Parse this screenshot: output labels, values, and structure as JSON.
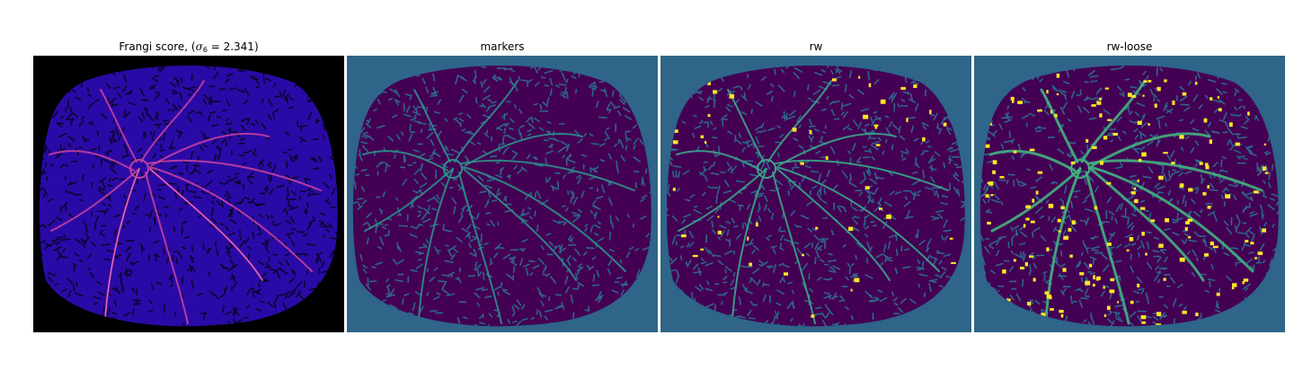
{
  "figure": {
    "panels": [
      {
        "id": "frangi",
        "title_prefix": "Frangi score, (",
        "title_symbol": "σ",
        "title_subscript": "6",
        "title_value": " = 2.341)",
        "colors": {
          "background": "#000000",
          "fill": "#2a0aa6",
          "texture": "#0b0330",
          "vessel": "#c33fa0",
          "vessel_hot": "#ff7fb0"
        }
      },
      {
        "id": "markers",
        "title": "markers",
        "colors": {
          "background": "#2e6589",
          "fill": "#440154",
          "vessel": "#2f8f8a"
        }
      },
      {
        "id": "rw",
        "title": "rw",
        "colors": {
          "background": "#2e6589",
          "fill": "#440154",
          "vessel": "#3aa78b",
          "highlight": "#fde725"
        }
      },
      {
        "id": "rw-loose",
        "title": "rw-loose",
        "colors": {
          "background": "#2e6589",
          "fill": "#440154",
          "vessel": "#43b380",
          "highlight": "#fde725"
        }
      }
    ]
  }
}
